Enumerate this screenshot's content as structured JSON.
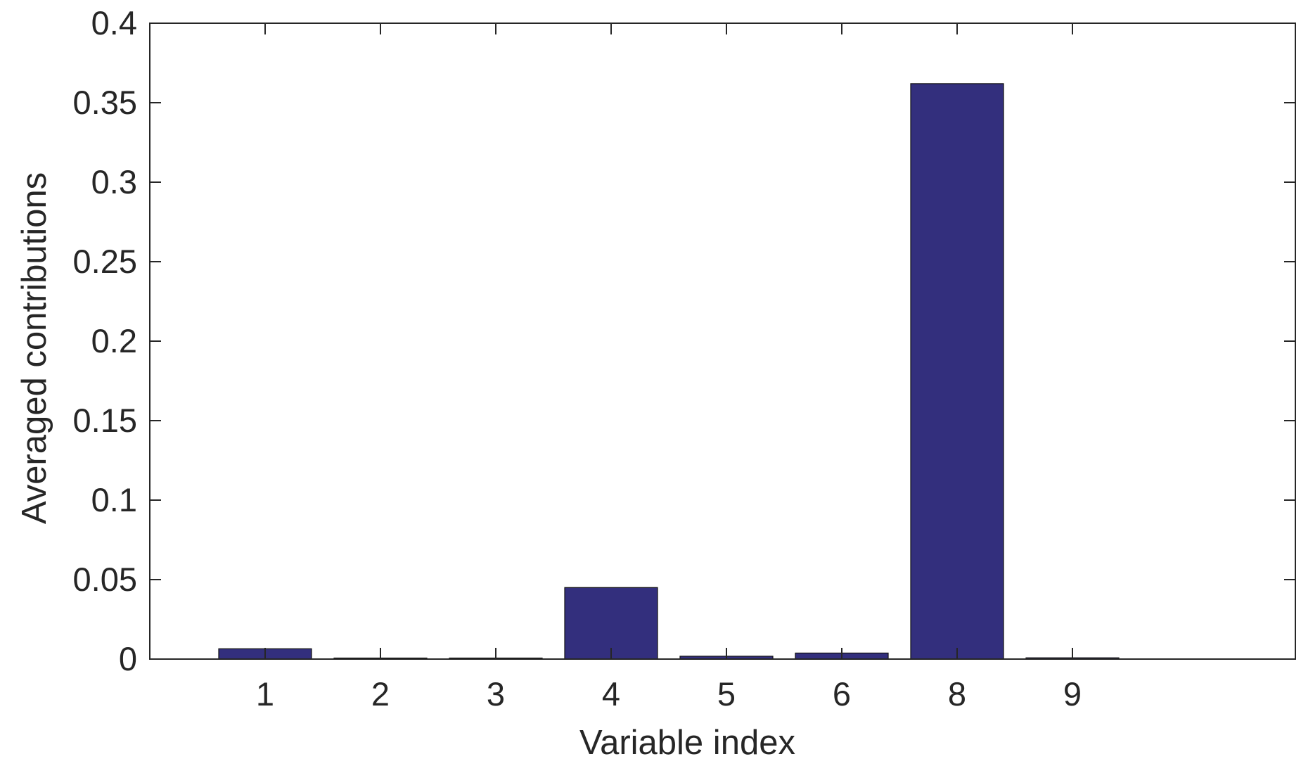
{
  "chart_data": {
    "type": "bar",
    "categories": [
      "1",
      "2",
      "3",
      "4",
      "5",
      "6",
      "8",
      "9"
    ],
    "values": [
      0.0065,
      0.0003,
      0.0003,
      0.045,
      0.0018,
      0.0038,
      0.362,
      0.0008
    ],
    "title": "",
    "xlabel": "Variable index",
    "ylabel": "Averaged contributions",
    "ylim": [
      0,
      0.4
    ],
    "yticks": [
      "0",
      "0.05",
      "0.1",
      "0.15",
      "0.2",
      "0.25",
      "0.3",
      "0.35",
      "0.4"
    ],
    "grid": false,
    "legend": "none",
    "bar_color": "#332f7d",
    "bar_edge_color": "#111111",
    "axis_color": "#262626",
    "background": "#ffffff"
  }
}
